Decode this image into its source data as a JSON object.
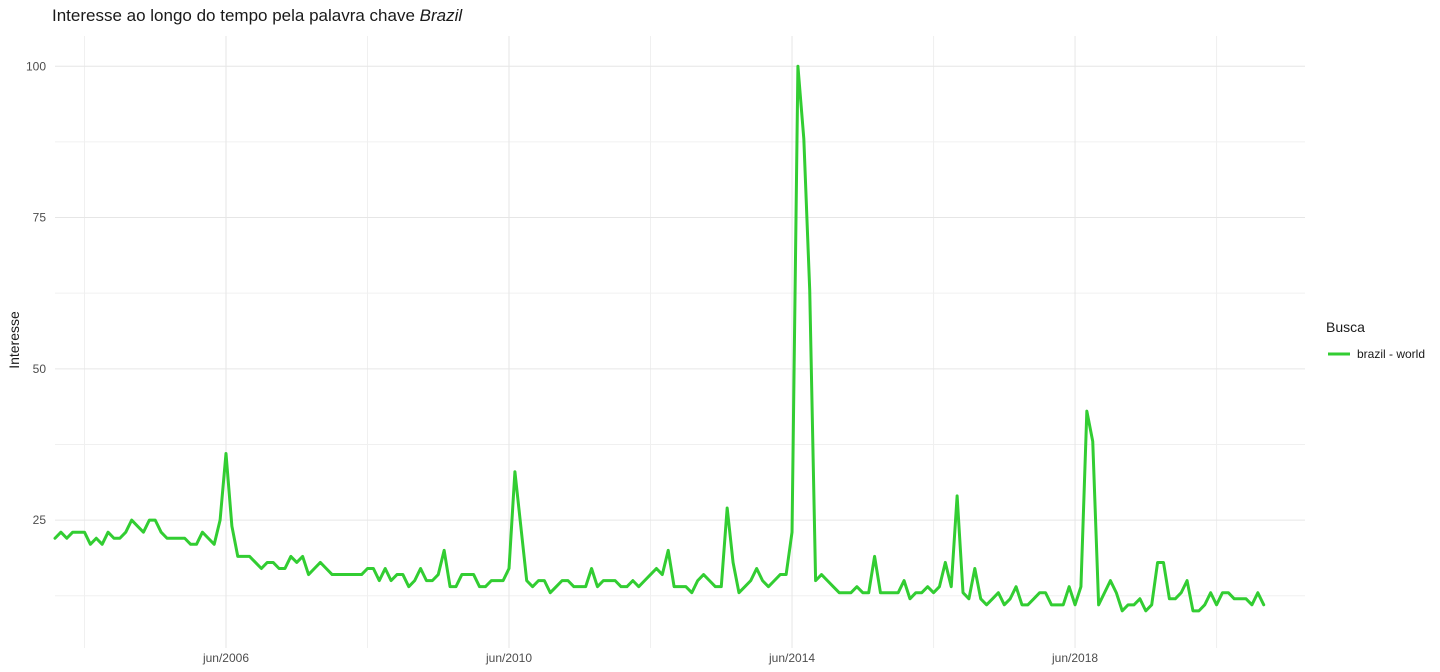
{
  "title": {
    "prefix": "Interesse ao longo do tempo pela palavra chave ",
    "keyword": "Brazil"
  },
  "chart_data": {
    "type": "line",
    "title": "Interesse ao longo do tempo pela palavra chave Brazil",
    "xlabel": "",
    "ylabel": "Interesse",
    "x_start": "2004-01",
    "x_interval": "month",
    "xlim": [
      "2004-01",
      "2021-09"
    ],
    "ylim": [
      7.5,
      105
    ],
    "x_ticks": [
      {
        "date": "2006-06",
        "label": "jun/2006"
      },
      {
        "date": "2010-06",
        "label": "jun/2010"
      },
      {
        "date": "2014-06",
        "label": "jun/2014"
      },
      {
        "date": "2018-06",
        "label": "jun/2018"
      }
    ],
    "y_ticks": [
      25,
      50,
      75,
      100
    ],
    "grid": true,
    "legend": {
      "title": "Busca",
      "position": "right"
    },
    "series": [
      {
        "name": "brazil - world",
        "color": "#32CD32",
        "values": [
          22,
          23,
          22,
          23,
          23,
          23,
          21,
          22,
          21,
          23,
          22,
          22,
          23,
          25,
          24,
          23,
          25,
          25,
          23,
          22,
          22,
          22,
          22,
          21,
          21,
          23,
          22,
          21,
          25,
          36,
          24,
          19,
          19,
          19,
          18,
          17,
          18,
          18,
          17,
          17,
          19,
          18,
          19,
          16,
          17,
          18,
          17,
          16,
          16,
          16,
          16,
          16,
          16,
          17,
          17,
          15,
          17,
          15,
          16,
          16,
          14,
          15,
          17,
          15,
          15,
          16,
          20,
          14,
          14,
          16,
          16,
          16,
          14,
          14,
          15,
          15,
          15,
          17,
          33,
          24,
          15,
          14,
          15,
          15,
          13,
          14,
          15,
          15,
          14,
          14,
          14,
          17,
          14,
          15,
          15,
          15,
          14,
          14,
          15,
          14,
          15,
          16,
          17,
          16,
          20,
          14,
          14,
          14,
          13,
          15,
          16,
          15,
          14,
          14,
          27,
          18,
          13,
          14,
          15,
          17,
          15,
          14,
          15,
          16,
          16,
          23,
          100,
          88,
          63,
          15,
          16,
          15,
          14,
          13,
          13,
          13,
          14,
          13,
          13,
          19,
          13,
          13,
          13,
          13,
          15,
          12,
          13,
          13,
          14,
          13,
          14,
          18,
          14,
          29,
          13,
          12,
          17,
          12,
          11,
          12,
          13,
          11,
          12,
          14,
          11,
          11,
          12,
          13,
          13,
          11,
          11,
          11,
          14,
          11,
          14,
          43,
          38,
          11,
          13,
          15,
          13,
          10,
          11,
          11,
          12,
          10,
          11,
          18,
          18,
          12,
          12,
          13,
          15,
          10,
          10,
          11,
          13,
          11,
          13,
          13,
          12,
          12,
          12,
          11,
          13,
          11
        ]
      }
    ]
  }
}
